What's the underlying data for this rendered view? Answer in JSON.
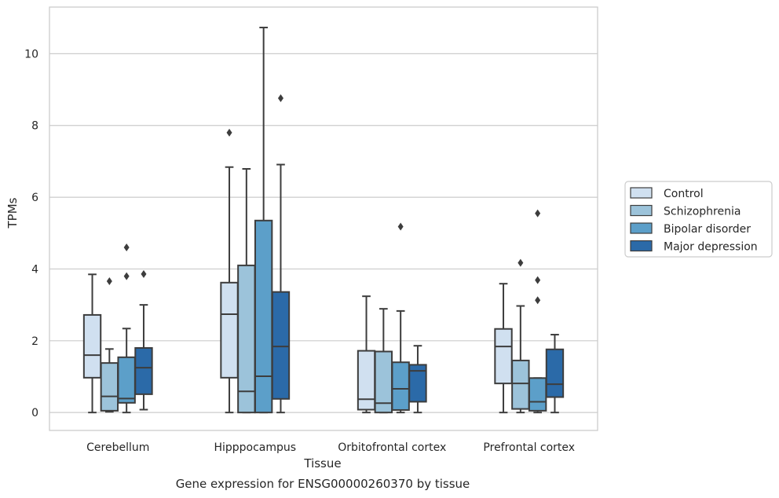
{
  "chart_data": {
    "type": "box",
    "title": "",
    "caption": "Gene expression for ENSG00000260370 by tissue",
    "xlabel": "Tissue",
    "ylabel": "TPMs",
    "ylim": [
      -0.5,
      11.3
    ],
    "yticks": [
      0,
      2,
      4,
      6,
      8,
      10
    ],
    "grid": true,
    "legend_position": "right",
    "categories": [
      "Cerebellum",
      "Hipppocampus",
      "Orbitofrontal cortex",
      "Prefrontal cortex"
    ],
    "series": [
      {
        "name": "Control",
        "color": "#d0e0f0",
        "boxes": [
          {
            "whislo": 0.0,
            "q1": 0.97,
            "med": 1.6,
            "q3": 2.72,
            "whishi": 3.85,
            "fliers": []
          },
          {
            "whislo": 0.0,
            "q1": 0.97,
            "med": 2.74,
            "q3": 3.62,
            "whishi": 6.84,
            "fliers": [
              7.8
            ]
          },
          {
            "whislo": 0.0,
            "q1": 0.08,
            "med": 0.37,
            "q3": 1.72,
            "whishi": 3.24,
            "fliers": []
          },
          {
            "whislo": 0.0,
            "q1": 0.81,
            "med": 1.84,
            "q3": 2.33,
            "whishi": 3.59,
            "fliers": []
          }
        ]
      },
      {
        "name": "Schizophrenia",
        "color": "#9cc3da",
        "boxes": [
          {
            "whislo": 0.02,
            "q1": 0.05,
            "med": 0.45,
            "q3": 1.38,
            "whishi": 1.77,
            "fliers": [
              3.66
            ]
          },
          {
            "whislo": 0.0,
            "q1": 0.0,
            "med": 0.59,
            "q3": 4.1,
            "whishi": 6.79,
            "fliers": []
          },
          {
            "whislo": 0.0,
            "q1": 0.0,
            "med": 0.26,
            "q3": 1.7,
            "whishi": 2.89,
            "fliers": []
          },
          {
            "whislo": 0.0,
            "q1": 0.1,
            "med": 0.81,
            "q3": 1.45,
            "whishi": 2.97,
            "fliers": [
              4.17
            ]
          }
        ]
      },
      {
        "name": "Bipolar disorder",
        "color": "#5c9fc9",
        "boxes": [
          {
            "whislo": 0.0,
            "q1": 0.27,
            "med": 0.39,
            "q3": 1.54,
            "whishi": 2.34,
            "fliers": [
              3.8,
              4.6
            ]
          },
          {
            "whislo": 0.0,
            "q1": 0.0,
            "med": 1.01,
            "q3": 5.35,
            "whishi": 10.73,
            "fliers": []
          },
          {
            "whislo": 0.0,
            "q1": 0.07,
            "med": 0.66,
            "q3": 1.4,
            "whishi": 2.83,
            "fliers": [
              5.18
            ]
          },
          {
            "whislo": 0.0,
            "q1": 0.05,
            "med": 0.3,
            "q3": 0.96,
            "whishi": 0.96,
            "fliers": [
              3.13,
              3.69,
              5.55
            ]
          }
        ]
      },
      {
        "name": "Major depression",
        "color": "#2b6aa8",
        "boxes": [
          {
            "whislo": 0.08,
            "q1": 0.51,
            "med": 1.25,
            "q3": 1.8,
            "whishi": 3.0,
            "fliers": [
              3.86
            ]
          },
          {
            "whislo": 0.0,
            "q1": 0.38,
            "med": 1.84,
            "q3": 3.36,
            "whishi": 6.91,
            "fliers": [
              8.76
            ]
          },
          {
            "whislo": 0.0,
            "q1": 0.3,
            "med": 1.16,
            "q3": 1.33,
            "whishi": 1.86,
            "fliers": []
          },
          {
            "whislo": 0.0,
            "q1": 0.43,
            "med": 0.79,
            "q3": 1.76,
            "whishi": 2.17,
            "fliers": []
          }
        ]
      }
    ]
  }
}
